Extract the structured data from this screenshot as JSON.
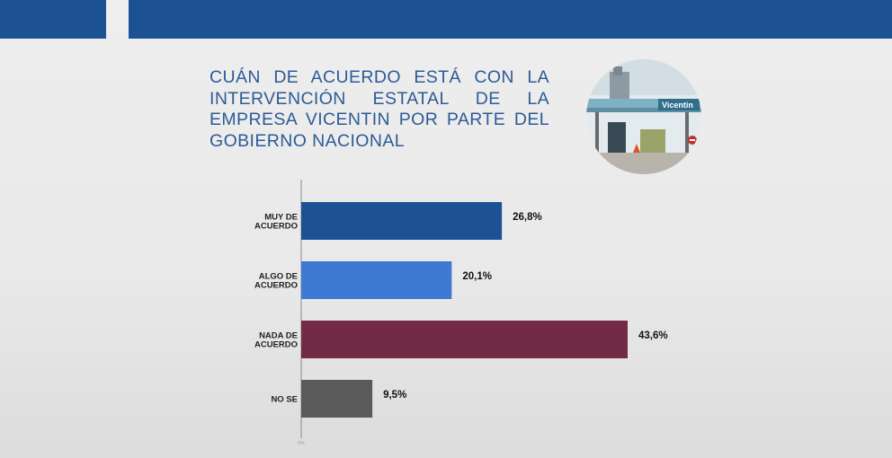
{
  "header": {
    "bar_color": "#1c5193"
  },
  "title": "CUÁN DE ACUERDO ESTÁ CON LA INTERVENCIÓN ESTATAL DE LA EMPRESA VICENTIN POR PARTE DEL GOBIERNO NACIONAL",
  "photo": {
    "sign_text": "Vicentin"
  },
  "chart_data": {
    "type": "bar",
    "orientation": "horizontal",
    "categories": [
      [
        "MUY DE",
        "ACUERDO"
      ],
      [
        "ALGO DE",
        "ACUERDO"
      ],
      [
        "NADA DE",
        "ACUERDO"
      ],
      [
        "NO SE"
      ]
    ],
    "values": [
      26.8,
      20.1,
      43.6,
      9.5
    ],
    "value_labels": [
      "26,8%",
      "20,1%",
      "43,6%",
      "9,5%"
    ],
    "colors": [
      "#1c5193",
      "#3e7ad3",
      "#722a45",
      "#5a5a5a"
    ],
    "xlim": [
      0,
      50
    ],
    "x_tick_label": "0%",
    "grid": false,
    "legend": "none"
  }
}
